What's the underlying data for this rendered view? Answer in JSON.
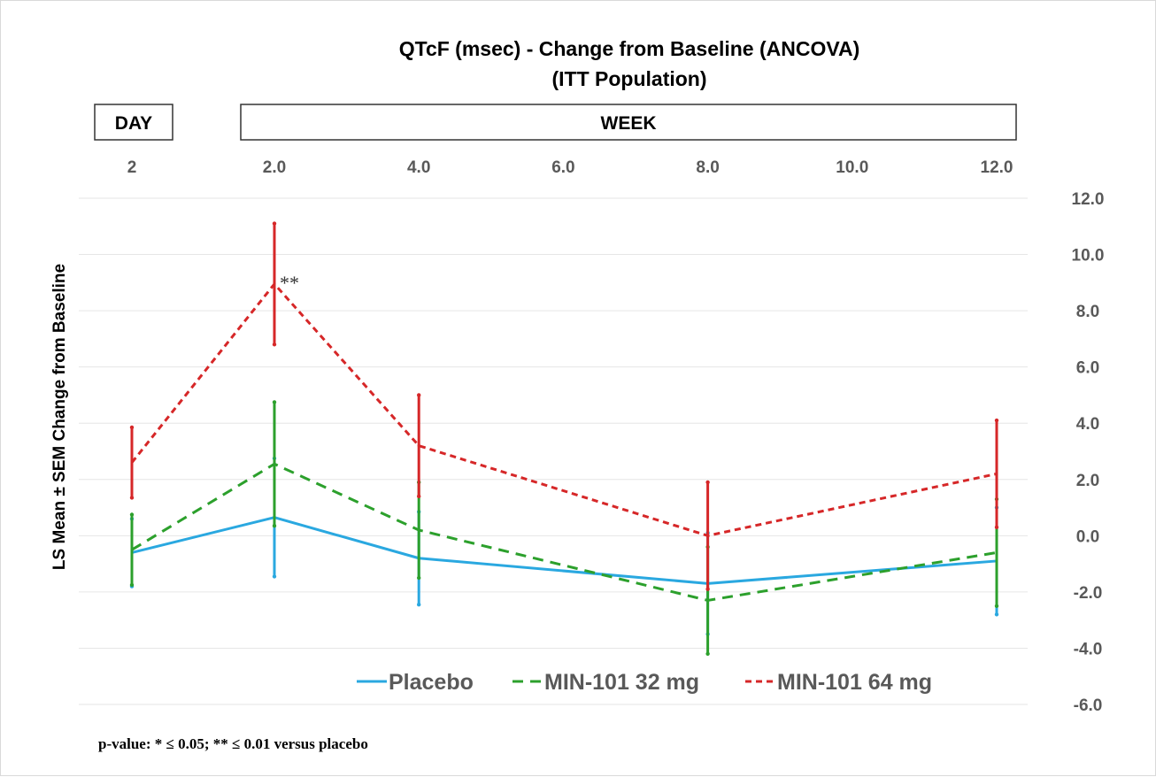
{
  "chart_data": {
    "type": "line",
    "title": "QTcF (msec) - Change from Baseline (ANCOVA)",
    "subtitle": "(ITT Population)",
    "ylabel": "LS Mean ± SEM Change from Baseline",
    "ylim": [
      -6.0,
      12.0
    ],
    "y_ticks": [
      "12.0",
      "10.0",
      "8.0",
      "6.0",
      "4.0",
      "2.0",
      "0.0",
      "-2.0",
      "-4.0",
      "-6.0"
    ],
    "x_ticks": [
      "2",
      "2.0",
      "4.0",
      "6.0",
      "8.0",
      "10.0",
      "12.0"
    ],
    "grid": true,
    "legend_position": "bottom",
    "day_box_label": "DAY",
    "week_box_label": "WEEK",
    "x": [
      "Day 2",
      "Week 2",
      "Week 4",
      "Week 8",
      "Week 12"
    ],
    "series": [
      {
        "name": "Placebo",
        "color": "#2aa8e0",
        "style": "solid",
        "values": [
          -0.6,
          0.65,
          -0.8,
          -1.7,
          -0.9
        ],
        "error": [
          1.2,
          2.1,
          1.65,
          1.8,
          1.9
        ]
      },
      {
        "name": "MIN-101 32 mg",
        "color": "#2ca02c",
        "style": "dashed",
        "values": [
          -0.5,
          2.55,
          0.2,
          -2.3,
          -0.6
        ],
        "error": [
          1.25,
          2.2,
          1.7,
          1.9,
          1.9
        ]
      },
      {
        "name": "MIN-101 64 mg",
        "color": "#d62728",
        "style": "dotted",
        "values": [
          2.6,
          8.95,
          3.2,
          0.0,
          2.2
        ],
        "error": [
          1.25,
          2.15,
          1.8,
          1.9,
          1.9
        ]
      }
    ],
    "annotations": [
      {
        "text": "**"
      }
    ],
    "footnote": "p-value: * ≤ 0.05;  ** ≤ 0.01 versus placebo"
  }
}
